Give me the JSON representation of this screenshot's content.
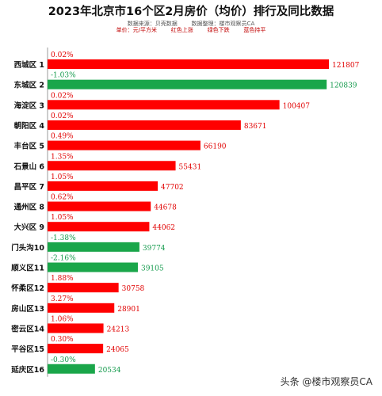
{
  "header": {
    "title": "2023年北京市16个区2月房价（均价）排行及同比数据",
    "sub1": "数据来源：贝壳数据        数据整理：楼市观察员CA",
    "sub2": "单价：元/平方米        红色上涨        绿色下跌        蓝色持平"
  },
  "watermark": "头条 @楼市观察员CA",
  "colors": {
    "up": "#ff0000",
    "down": "#1aa64a",
    "upText": "#e10000",
    "downText": "#11994a"
  },
  "chart_data": {
    "type": "bar",
    "orientation": "horizontal",
    "title": "2023年北京市16个区2月房价（均价）排行及同比数据",
    "unit": "元/平方米",
    "categories": [
      "西城区 1",
      "东城区 2",
      "海淀区 3",
      "朝阳区 4",
      "丰台区 5",
      "石景山 6",
      "昌平区 7",
      "通州区 8",
      "大兴区 9",
      "门头沟10",
      "顺义区11",
      "怀柔区12",
      "房山区13",
      "密云区14",
      "平谷区15",
      "延庆区16"
    ],
    "values": [
      121807,
      120839,
      100407,
      83671,
      66190,
      55431,
      47702,
      44678,
      44062,
      39774,
      39105,
      30758,
      28901,
      24213,
      24065,
      20534
    ],
    "yoy": [
      "0.02%",
      "-1.03%",
      "0.02%",
      "0.02%",
      "0.49%",
      "1.35%",
      "1.05%",
      "0.62%",
      "1.05%",
      "-1.38%",
      "-2.16%",
      "1.88%",
      "3.27%",
      "1.06%",
      "0.30%",
      "-0.30%"
    ],
    "direction": [
      "up",
      "down",
      "up",
      "up",
      "up",
      "up",
      "up",
      "up",
      "up",
      "down",
      "down",
      "up",
      "up",
      "up",
      "up",
      "down"
    ]
  }
}
